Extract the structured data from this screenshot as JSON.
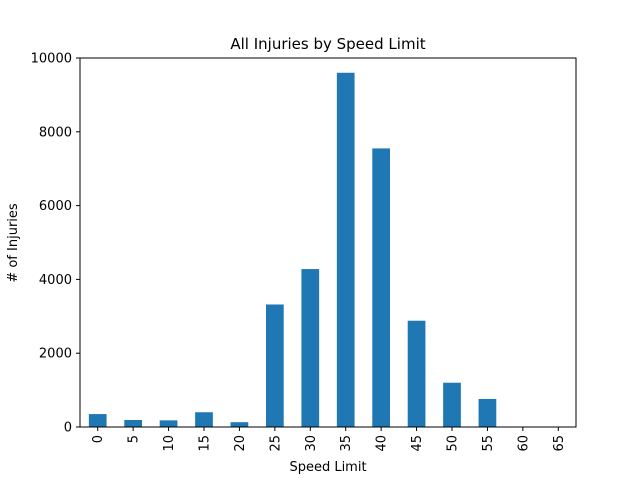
{
  "chart_data": {
    "type": "bar",
    "title": "All Injuries by Speed Limit",
    "xlabel": "Speed Limit",
    "ylabel": "# of Injuries",
    "categories": [
      "0",
      "5",
      "10",
      "15",
      "20",
      "25",
      "30",
      "35",
      "40",
      "45",
      "50",
      "55",
      "60",
      "65"
    ],
    "values": [
      350,
      190,
      180,
      400,
      130,
      3320,
      4280,
      9600,
      7550,
      2880,
      1200,
      760,
      5,
      5
    ],
    "ylim": [
      0,
      10000
    ],
    "yticks": [
      0,
      2000,
      4000,
      6000,
      8000,
      10000
    ],
    "bar_color": "#1f77b4",
    "grid": false,
    "legend": false
  }
}
